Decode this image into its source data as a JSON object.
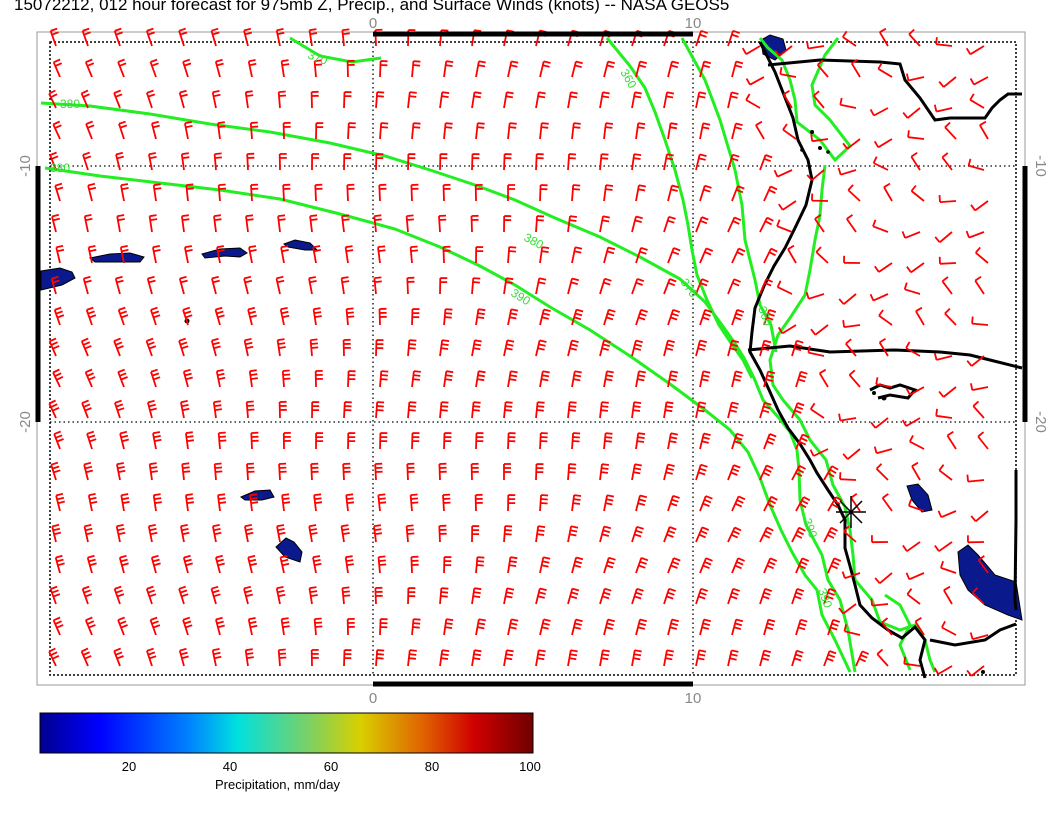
{
  "title": "15072212, 012 hour forecast for 975mb Z, Precip., and Surface Winds (knots) -- NASA GEOS5",
  "map": {
    "top_ticks": [
      "0",
      "10"
    ],
    "bottom_ticks": [
      "0",
      "10"
    ],
    "left_ticks": [
      "-10",
      "-20"
    ],
    "right_ticks": [
      "-10",
      "-20"
    ],
    "contour_labels": [
      "370",
      "360",
      "380",
      "380",
      "380",
      "390",
      "370",
      "360",
      "390",
      "390"
    ],
    "colors": {
      "wind_barb": "#ff0000",
      "contour": "#22ee22",
      "coastline": "#000000",
      "precip_fill": "#0a1a8c",
      "tick_text": "#888888"
    }
  },
  "colorbar": {
    "title": "Precipitation, mm/day",
    "ticks": [
      "20",
      "40",
      "60",
      "80",
      "100"
    ],
    "colormap": [
      "#00008f",
      "#0000ff",
      "#0080ff",
      "#00ffff",
      "#80ff80",
      "#ffff00",
      "#ff8000",
      "#ff0000",
      "#800000"
    ]
  }
}
